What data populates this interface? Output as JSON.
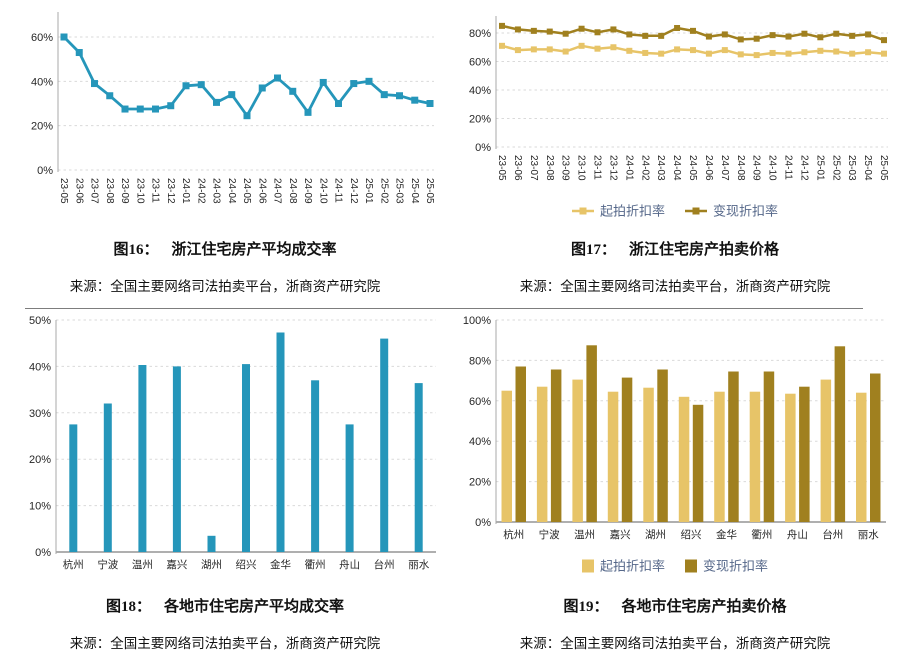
{
  "colors": {
    "teal": "#2596BA",
    "gold_light": "#E7C468",
    "gold_dark": "#A0801F",
    "grid": "#DADADA",
    "axis_line": "#A8A8A8",
    "zero_axis": "#7F7F7F",
    "tick_text": "#262626",
    "legend_text": "#56688A",
    "separator": "#7D7D7D"
  },
  "figures": [
    {
      "caption_label": "图16：",
      "caption_title": "浙江住宅房产平均成交率",
      "source": "来源：全国主要网络司法拍卖平台，浙商资产研究院"
    },
    {
      "caption_label": "图17：",
      "caption_title": "浙江住宅房产拍卖价格",
      "source": "来源：全国主要网络司法拍卖平台，浙商资产研究院"
    },
    {
      "caption_label": "图18：",
      "caption_title": "各地市住宅房产平均成交率",
      "source": "来源：全国主要网络司法拍卖平台，浙商资产研究院"
    },
    {
      "caption_label": "图19：",
      "caption_title": "各地市住宅房产拍卖价格",
      "source": "来源：全国主要网络司法拍卖平台，浙商资产研究院"
    }
  ],
  "chart_data": [
    {
      "id": "fig16",
      "type": "line",
      "title": "图16：浙江住宅房产平均成交率",
      "categories": [
        "23-05",
        "23-06",
        "23-07",
        "23-08",
        "23-09",
        "23-10",
        "23-11",
        "23-12",
        "24-01",
        "24-02",
        "24-03",
        "24-04",
        "24-05",
        "24-06",
        "24-07",
        "24-08",
        "24-09",
        "24-10",
        "24-11",
        "24-12",
        "25-01",
        "25-02",
        "25-03",
        "25-04",
        "25-05"
      ],
      "series": [
        {
          "name": "平均成交率",
          "color_key": "teal",
          "values": [
            60,
            53,
            39,
            33.5,
            27.5,
            27.5,
            27.5,
            29,
            38,
            38.5,
            30.5,
            34,
            24.5,
            37,
            41.5,
            35.5,
            26,
            39.5,
            30,
            39,
            40,
            34,
            33.5,
            31.5,
            30
          ]
        }
      ],
      "ylim": [
        0,
        65
      ],
      "yticks": [
        0,
        20,
        40,
        60
      ],
      "grid": true,
      "legend": false
    },
    {
      "id": "fig17",
      "type": "line",
      "title": "图17：浙江住宅房产拍卖价格",
      "categories": [
        "23-05",
        "23-06",
        "23-07",
        "23-08",
        "23-09",
        "23-10",
        "23-11",
        "23-12",
        "24-01",
        "24-02",
        "24-03",
        "24-04",
        "24-05",
        "24-06",
        "24-07",
        "24-08",
        "24-09",
        "24-10",
        "24-11",
        "24-12",
        "25-01",
        "25-02",
        "25-03",
        "25-04",
        "25-05"
      ],
      "series": [
        {
          "name": "起拍折扣率",
          "color_key": "gold_light",
          "values": [
            71,
            68,
            68.5,
            68.5,
            67,
            71,
            69,
            70,
            67.5,
            66,
            65.5,
            68.5,
            68,
            65.5,
            68,
            65,
            64.5,
            66,
            65.5,
            66.5,
            67.5,
            67,
            65.5,
            66.5,
            65.5
          ]
        },
        {
          "name": "变现折扣率",
          "color_key": "gold_dark",
          "values": [
            85,
            82.5,
            81.5,
            81,
            79.5,
            83,
            80.5,
            82.5,
            79,
            78,
            78,
            83.5,
            81.5,
            77.5,
            79,
            75.5,
            76,
            78.5,
            77.5,
            79.5,
            77,
            79.5,
            78,
            79,
            75
          ]
        }
      ],
      "ylim": [
        0,
        90
      ],
      "yticks": [
        0,
        20,
        40,
        60,
        80
      ],
      "grid": true,
      "legend": true,
      "legend_style": "line"
    },
    {
      "id": "fig18",
      "type": "bar",
      "title": "图18：各地市住宅房产平均成交率",
      "categories": [
        "杭州",
        "宁波",
        "温州",
        "嘉兴",
        "湖州",
        "绍兴",
        "金华",
        "衢州",
        "舟山",
        "台州",
        "丽水"
      ],
      "series": [
        {
          "name": "平均成交率",
          "color_key": "teal",
          "values": [
            27.5,
            32,
            40.3,
            40,
            3.5,
            40.5,
            47.3,
            37,
            27.5,
            46,
            36.4
          ]
        }
      ],
      "ylim": [
        0,
        50
      ],
      "yticks": [
        0,
        10,
        20,
        30,
        40,
        50
      ],
      "grid": true,
      "legend": false
    },
    {
      "id": "fig19",
      "type": "bar",
      "title": "图19：各地市住宅房产拍卖价格",
      "categories": [
        "杭州",
        "宁波",
        "温州",
        "嘉兴",
        "湖州",
        "绍兴",
        "金华",
        "衢州",
        "舟山",
        "台州",
        "丽水"
      ],
      "series": [
        {
          "name": "起拍折扣率",
          "color_key": "gold_light",
          "values": [
            65,
            67,
            70.5,
            64.5,
            66.5,
            62,
            64.5,
            64.5,
            63.5,
            70.5,
            64
          ]
        },
        {
          "name": "变现折扣率",
          "color_key": "gold_dark",
          "values": [
            77,
            75.5,
            87.5,
            71.5,
            75.5,
            58,
            74.5,
            74.5,
            67,
            87,
            73.5
          ]
        }
      ],
      "ylim": [
        0,
        100
      ],
      "yticks": [
        0,
        20,
        40,
        60,
        80,
        100
      ],
      "grid": true,
      "legend": true,
      "legend_style": "swatch"
    }
  ]
}
